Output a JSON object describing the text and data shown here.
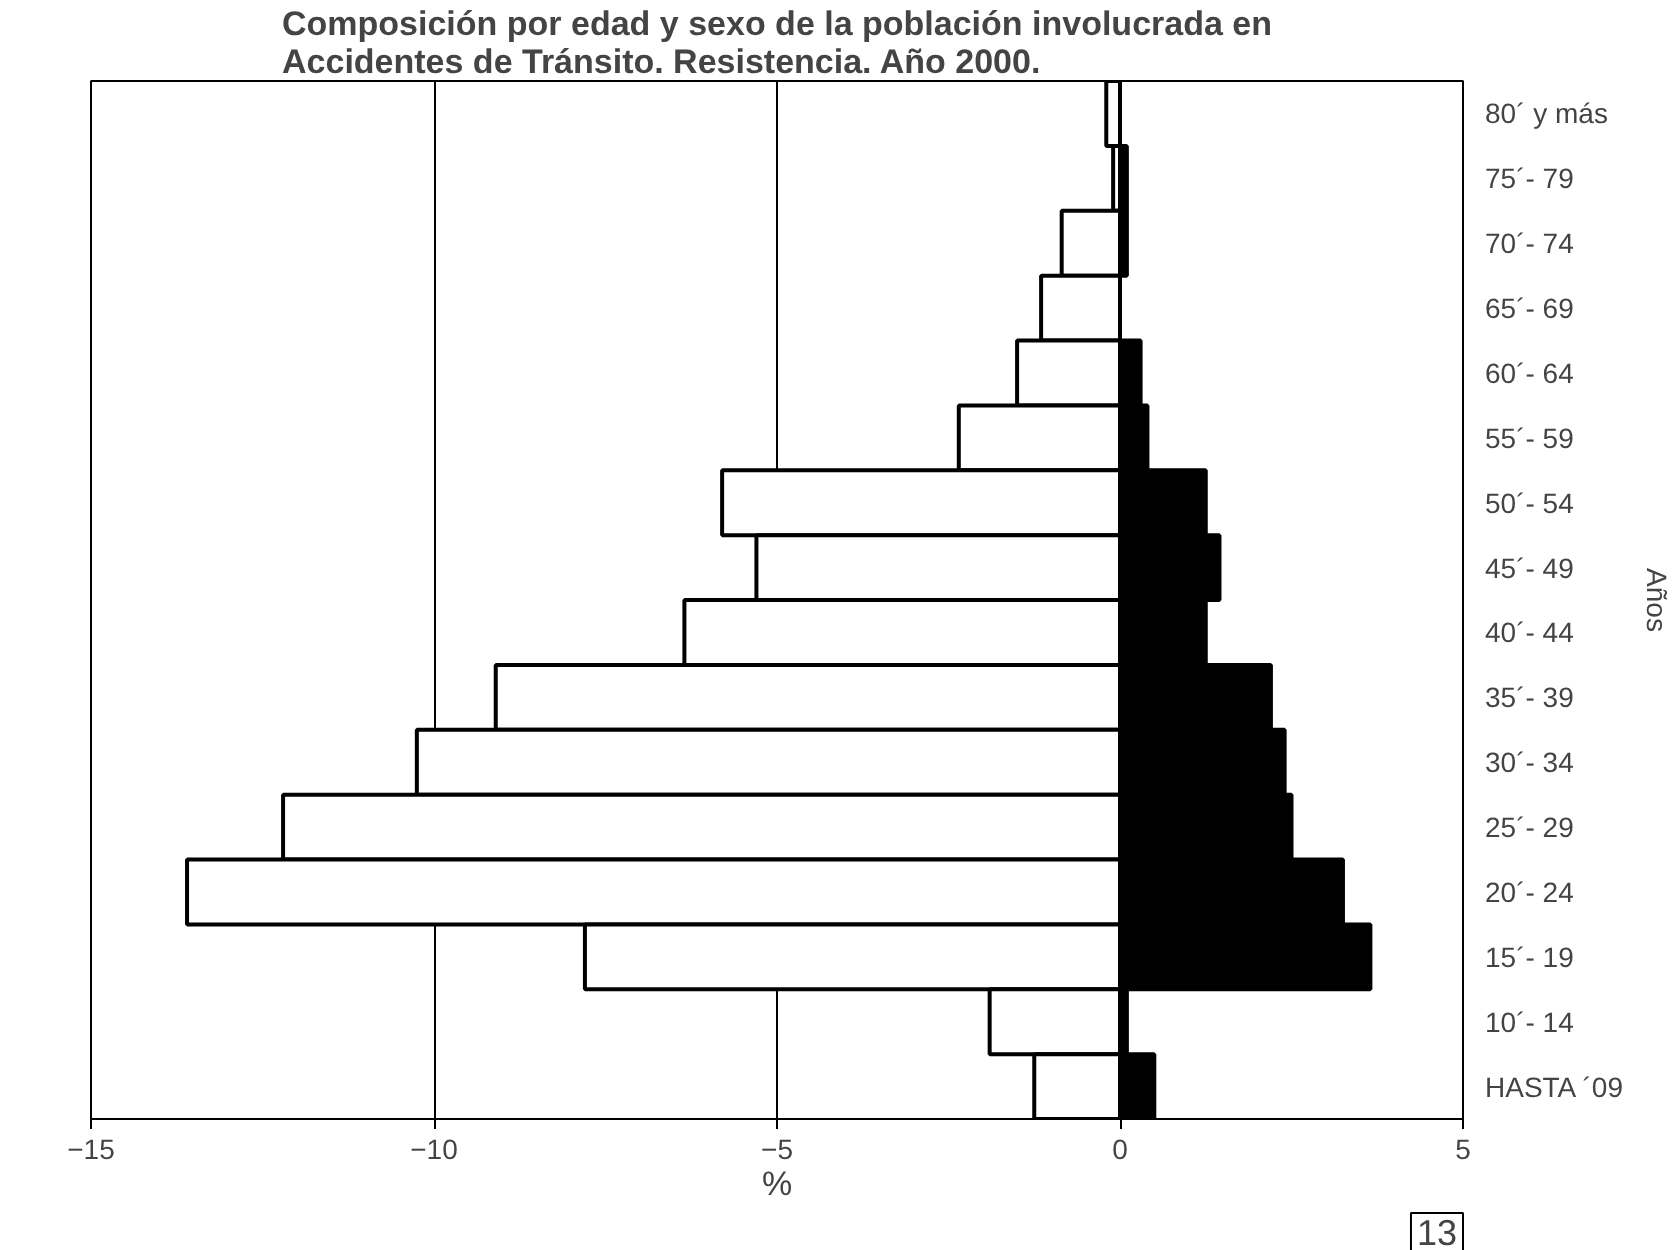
{
  "chart_data": {
    "type": "bar",
    "orientation": "horizontal",
    "stacked": true,
    "title": "Composición por edad y sexo de la población involucrada en\nAccidentes de Tránsito. Resistencia. Año 2000.",
    "xlabel": "%",
    "ylabel": "Años",
    "categories": [
      "80´ y más",
      "75´- 79",
      "70´- 74",
      "65´- 69",
      "60´- 64",
      "55´- 59",
      "50´- 54",
      "45´- 49",
      "40´- 44",
      "35´- 39",
      "30´- 34",
      "25´- 29",
      "20´- 24",
      "15´- 19",
      "10´- 14",
      "HASTA ´09"
    ],
    "series": [
      {
        "color": "#ffffff",
        "values": [
          -0.2,
          -0.1,
          -0.85,
          -1.15,
          -1.5,
          -2.35,
          -5.8,
          -5.3,
          -6.35,
          -9.1,
          -10.25,
          -12.2,
          -13.6,
          -7.8,
          -1.9,
          -1.25
        ]
      },
      {
        "color": "#000000",
        "values": [
          0,
          0.1,
          0.1,
          0,
          0.3,
          0.4,
          1.25,
          1.45,
          1.25,
          2.2,
          2.4,
          2.5,
          3.25,
          3.65,
          0.1,
          0.5
        ]
      }
    ],
    "xlim": [
      -15,
      5
    ],
    "xticks": [
      -15,
      -10,
      -5,
      0,
      5
    ],
    "grid": "x",
    "annotations": [
      "13"
    ]
  }
}
